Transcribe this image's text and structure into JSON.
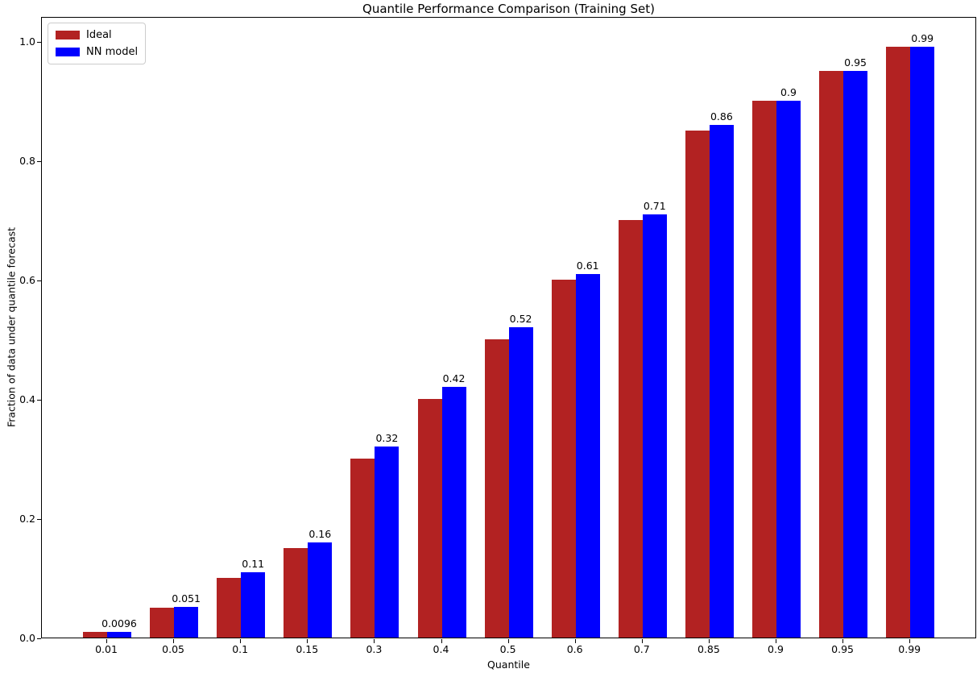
{
  "chart_data": {
    "type": "bar",
    "title": "Quantile Performance Comparison (Training Set)",
    "xlabel": "Quantile",
    "ylabel": "Fraction of data under quantile forecast",
    "categories": [
      "0.01",
      "0.05",
      "0.1",
      "0.15",
      "0.3",
      "0.4",
      "0.5",
      "0.6",
      "0.7",
      "0.85",
      "0.9",
      "0.95",
      "0.99"
    ],
    "series": [
      {
        "name": "Ideal",
        "color": "#b22222",
        "values": [
          0.01,
          0.05,
          0.1,
          0.15,
          0.3,
          0.4,
          0.5,
          0.6,
          0.7,
          0.85,
          0.9,
          0.95,
          0.99
        ]
      },
      {
        "name": "NN model",
        "color": "#0000ff",
        "values": [
          0.0096,
          0.051,
          0.11,
          0.16,
          0.32,
          0.42,
          0.52,
          0.61,
          0.71,
          0.86,
          0.9,
          0.95,
          0.99
        ],
        "bar_labels": [
          "0.0096",
          "0.051",
          "0.11",
          "0.16",
          "0.32",
          "0.42",
          "0.52",
          "0.61",
          "0.71",
          "0.86",
          "0.9",
          "0.95",
          "0.99"
        ]
      }
    ],
    "ytick_values": [
      0.0,
      0.2,
      0.4,
      0.6,
      0.8,
      1.0
    ],
    "ytick_labels": [
      "0.0",
      "0.2",
      "0.4",
      "0.6",
      "0.8",
      "1.0"
    ],
    "ylim": [
      0,
      1.04
    ],
    "legend_position": "upper left",
    "grid": false,
    "background": "#ffffff",
    "spine_color": "#000000"
  }
}
